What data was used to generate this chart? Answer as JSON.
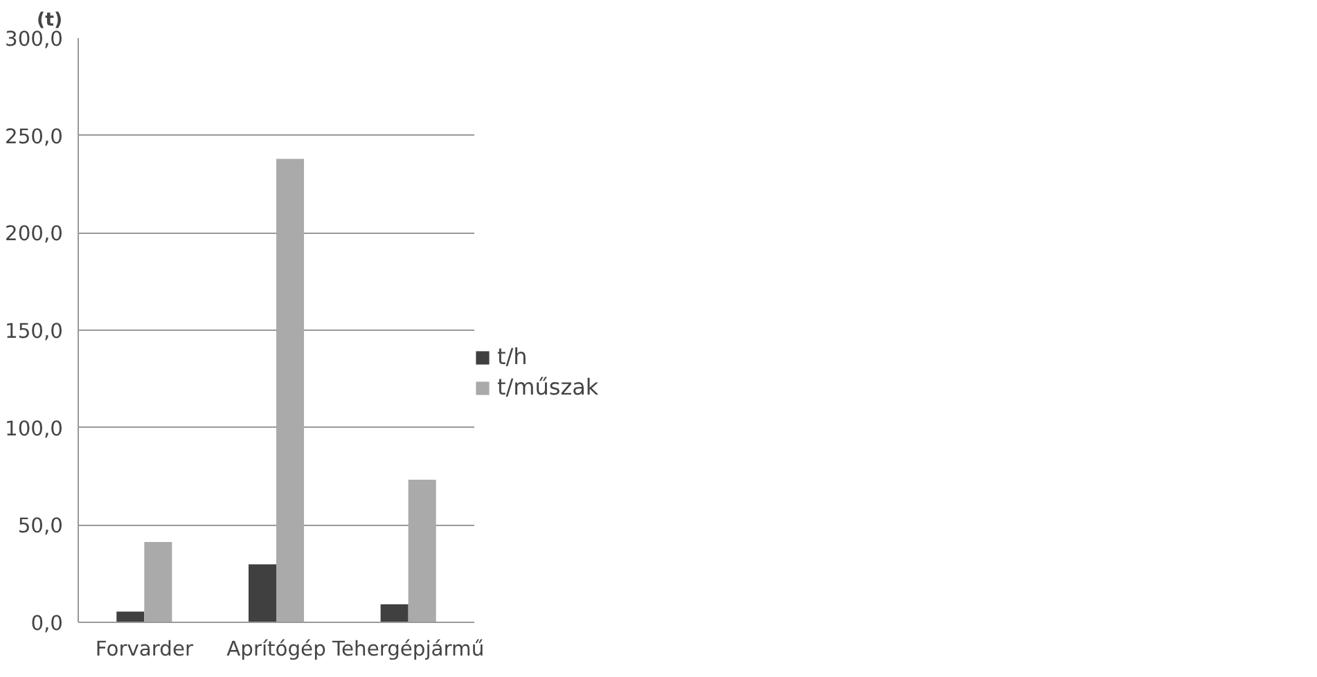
{
  "chart_data": {
    "type": "bar",
    "ylabel": "(t)",
    "categories": [
      "Forvarder",
      "Aprítógép",
      "Tehergépjármű"
    ],
    "series": [
      {
        "name": "t/h",
        "color": "#404040",
        "values": [
          5.5,
          29.8,
          9.2
        ]
      },
      {
        "name": "t/műszak",
        "color": "#aaaaaa",
        "values": [
          41.2,
          238,
          73.2
        ]
      }
    ],
    "ylim": [
      0,
      300
    ],
    "yticks": [
      {
        "value": 0,
        "label": "0,0"
      },
      {
        "value": 50,
        "label": "50,0"
      },
      {
        "value": 100,
        "label": "100,0"
      },
      {
        "value": 150,
        "label": "150,0"
      },
      {
        "value": 200,
        "label": "200,0"
      },
      {
        "value": 250,
        "label": "250,0"
      },
      {
        "value": 300,
        "label": "300,0"
      }
    ],
    "grid": "y",
    "legend": "right"
  }
}
